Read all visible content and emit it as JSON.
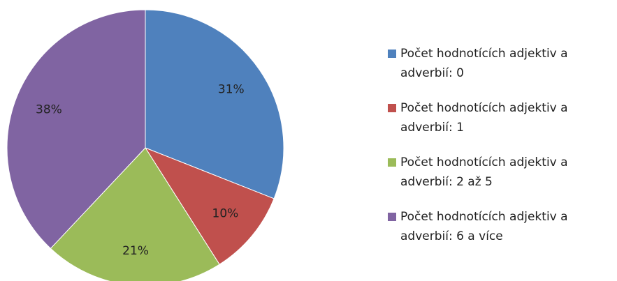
{
  "chart_data": {
    "type": "pie",
    "categories": [
      "Počet hodnotících adjektiv a adverbií: 0",
      "Počet hodnotících adjektiv a adverbií: 1",
      "Počet hodnotících adjektiv a adverbií: 2 až 5",
      "Počet hodnotících adjektiv a adverbií: 6 a více"
    ],
    "values": [
      31,
      10,
      21,
      38
    ],
    "value_labels": [
      "31%",
      "10%",
      "21%",
      "38%"
    ],
    "colors": [
      "#4f81bd",
      "#c0504d",
      "#9bbb59",
      "#8064a2"
    ],
    "legend": "right"
  }
}
